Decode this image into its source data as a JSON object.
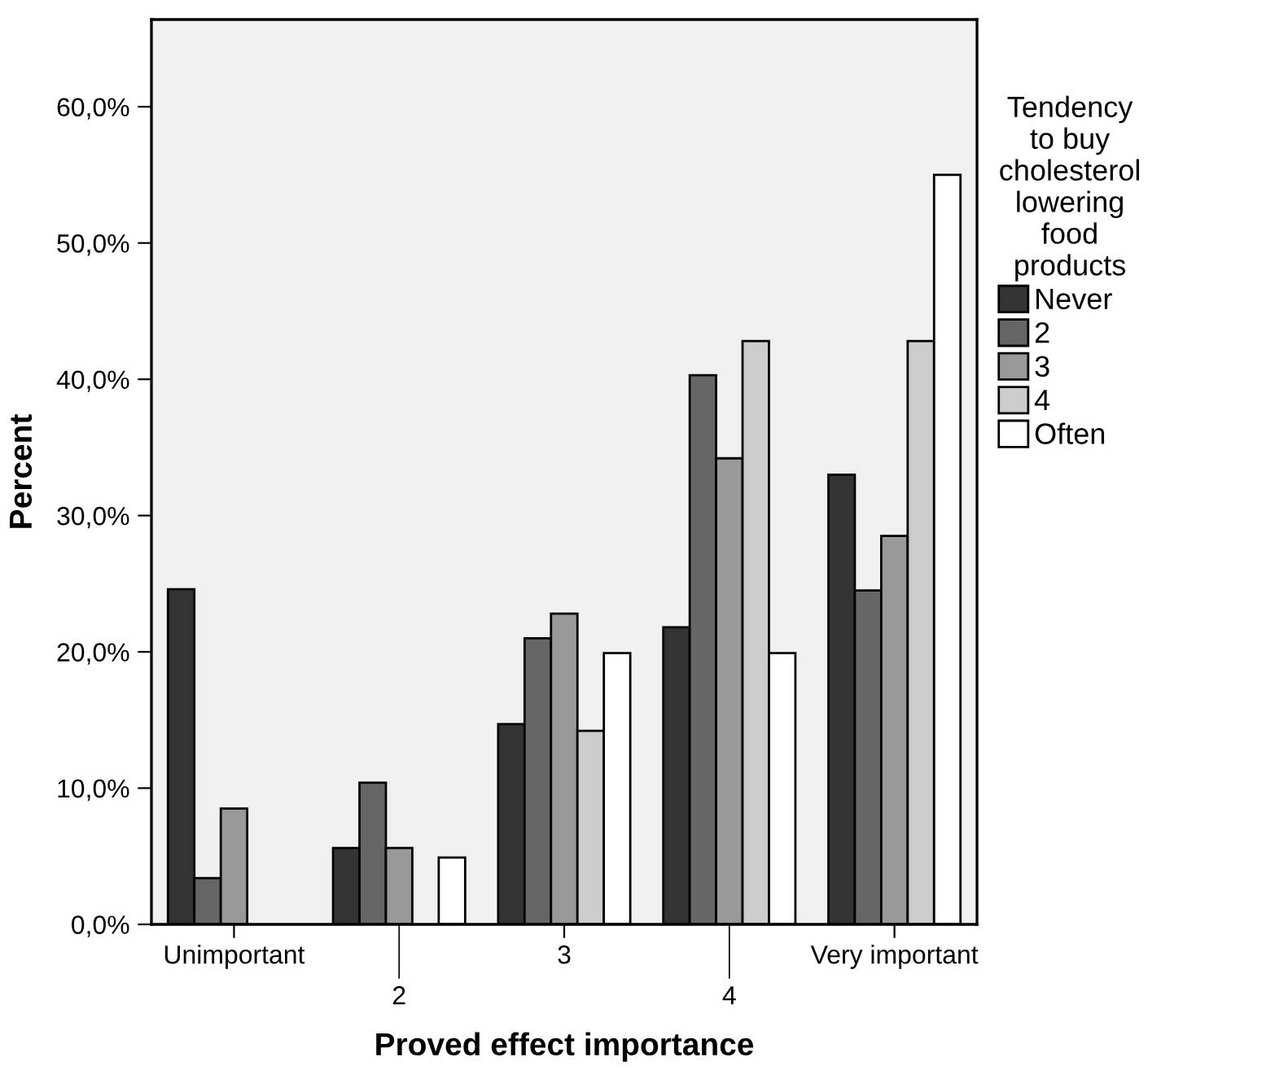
{
  "chart_data": {
    "type": "bar",
    "xlabel": "Proved effect importance",
    "ylabel": "Percent",
    "legend_title": "Tendency\nto buy\ncholesterol\nlowering\nfood\nproducts",
    "categories": [
      "Unimportant",
      "2",
      "3",
      "4",
      "Very important"
    ],
    "series": [
      {
        "name": "Never",
        "color": "#333333",
        "values": [
          24.6,
          5.6,
          14.7,
          21.8,
          33.0
        ]
      },
      {
        "name": "2",
        "color": "#666666",
        "values": [
          3.4,
          10.4,
          21.0,
          40.3,
          24.5
        ]
      },
      {
        "name": "3",
        "color": "#999999",
        "values": [
          8.5,
          5.6,
          22.8,
          34.2,
          28.5
        ]
      },
      {
        "name": "4",
        "color": "#cccccc",
        "values": [
          null,
          null,
          14.2,
          42.8,
          42.8
        ]
      },
      {
        "name": "Often",
        "color": "#ffffff",
        "values": [
          null,
          4.9,
          19.9,
          19.9,
          55.0
        ]
      }
    ],
    "ylim": [
      0,
      66.4
    ],
    "yticks": [
      {
        "value": 0,
        "label": "0,0%"
      },
      {
        "value": 10,
        "label": "10,0%"
      },
      {
        "value": 20,
        "label": "20,0%"
      },
      {
        "value": 30,
        "label": "30,0%"
      },
      {
        "value": 40,
        "label": "40,0%"
      },
      {
        "value": 50,
        "label": "50,0%"
      },
      {
        "value": 60,
        "label": "60,0%"
      }
    ],
    "grid": false,
    "legend": "right"
  }
}
